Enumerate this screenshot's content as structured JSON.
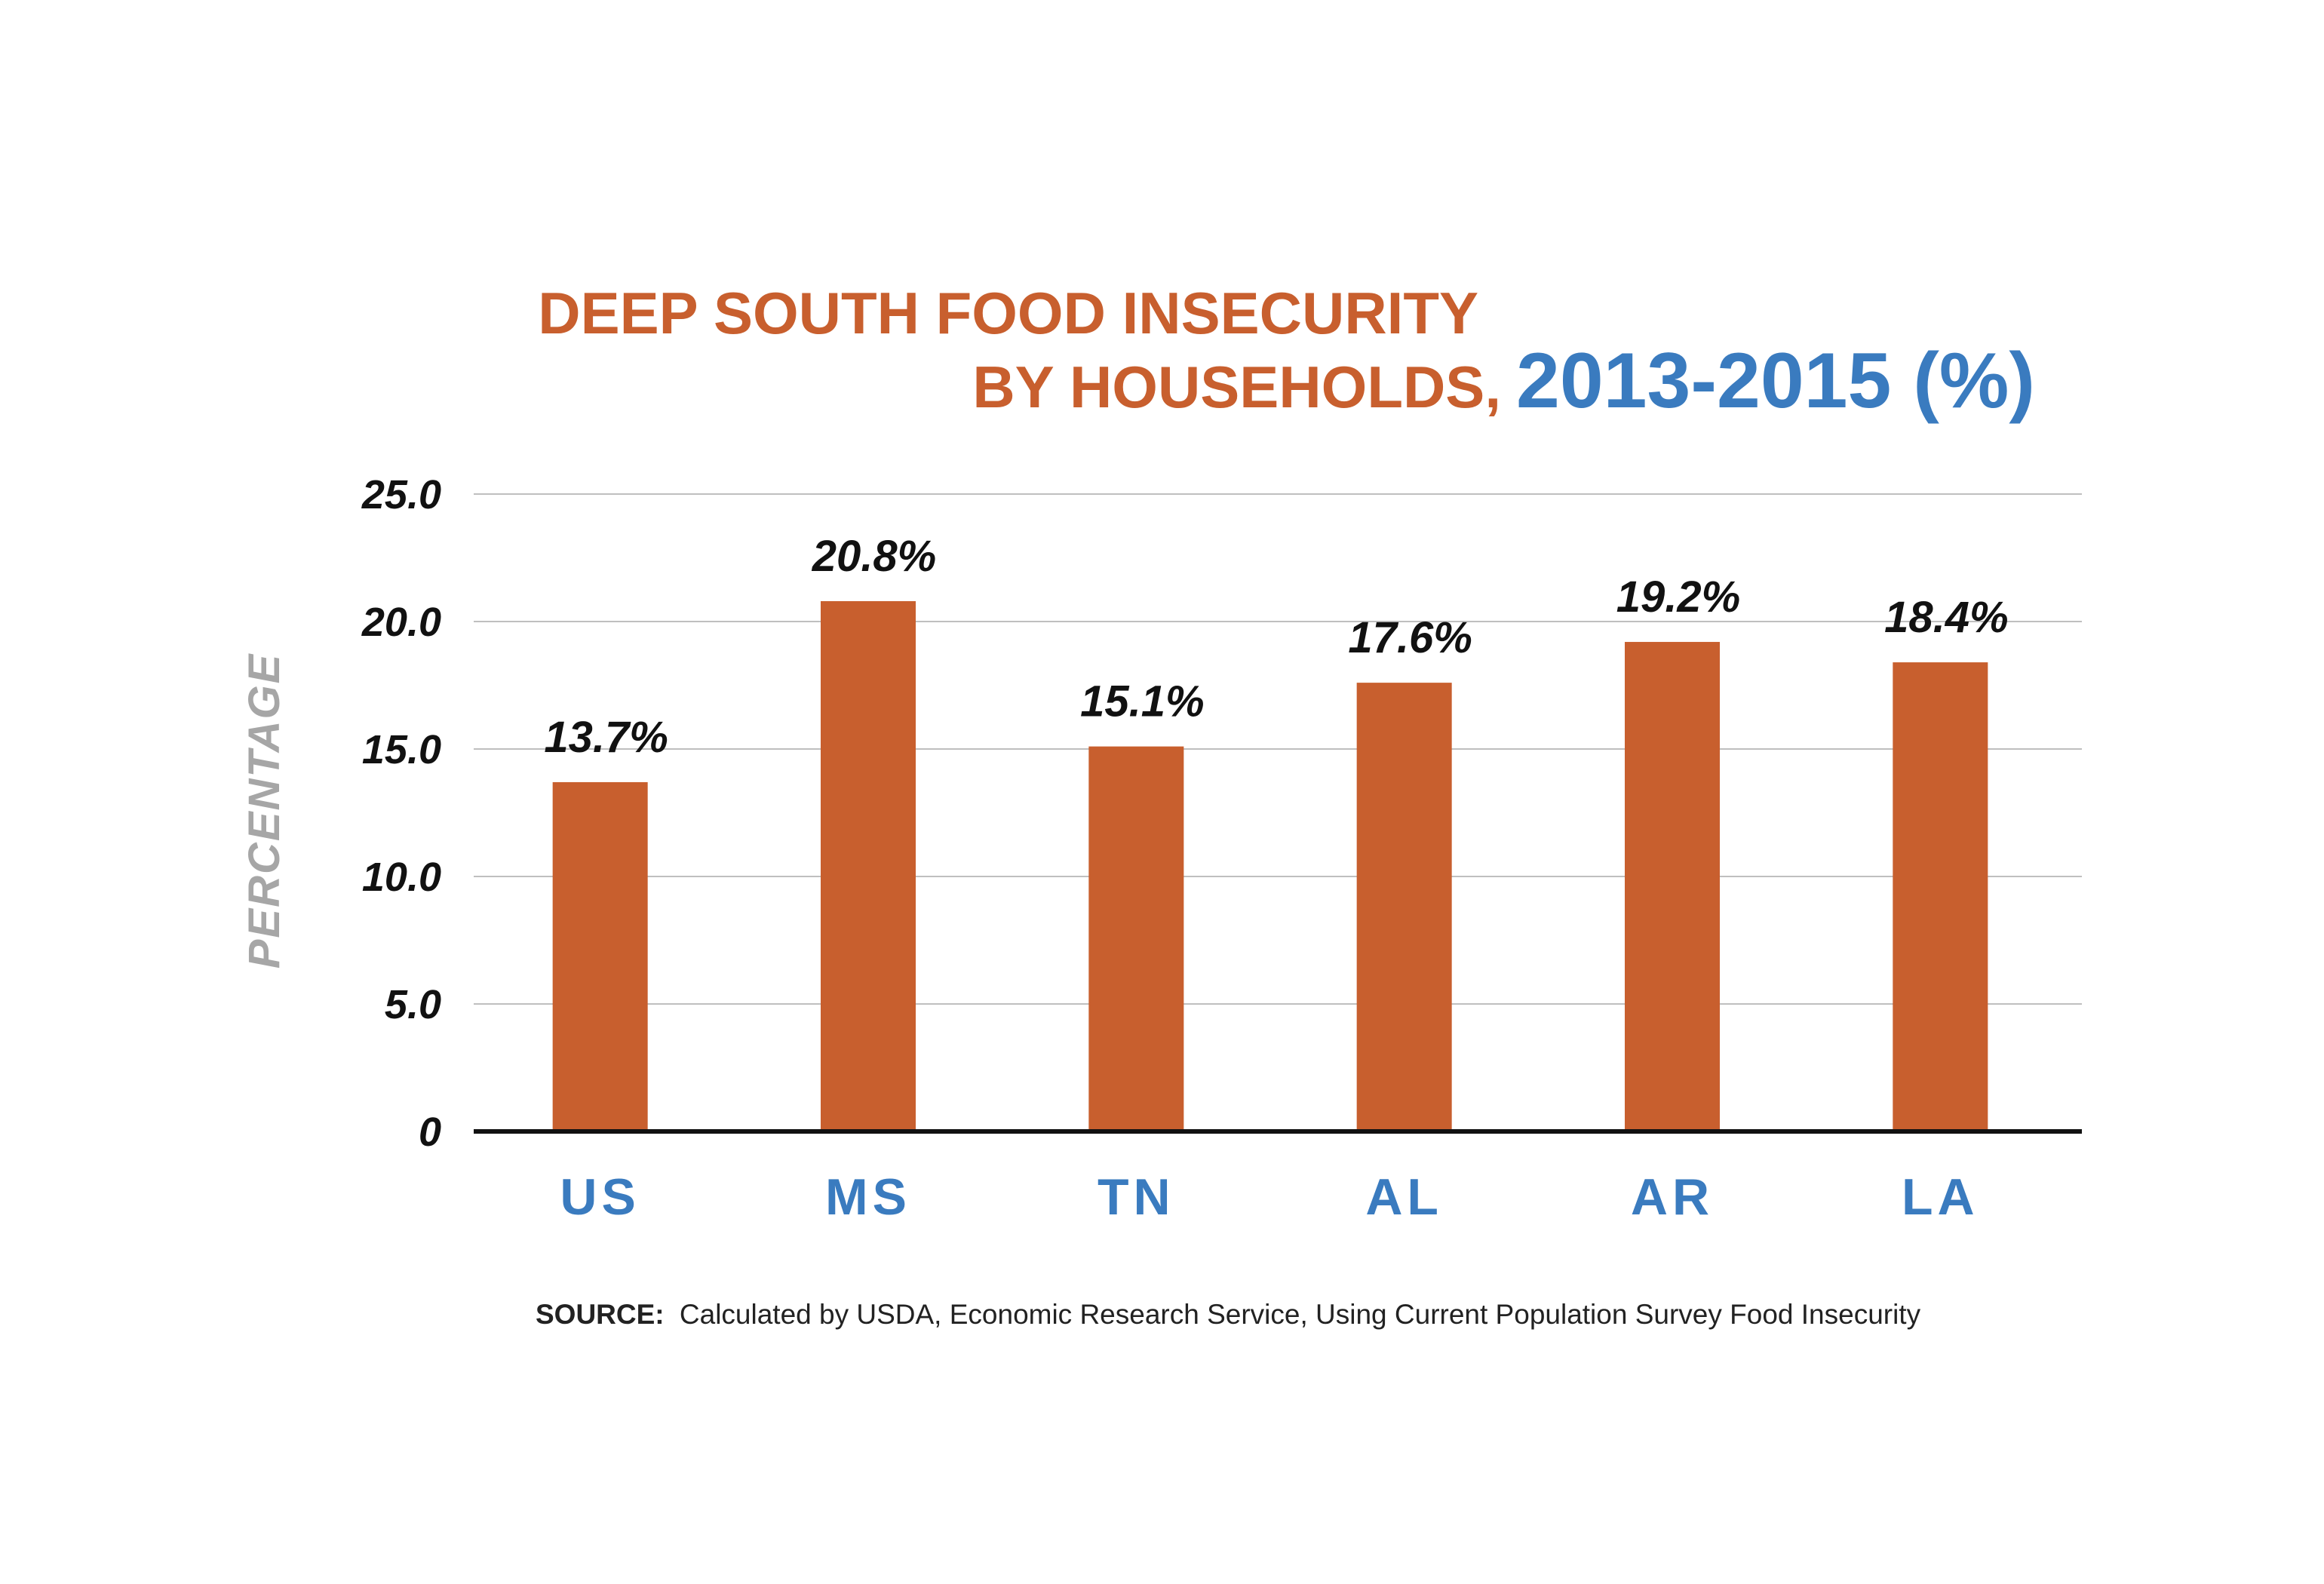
{
  "colors": {
    "bar": "#c85f2e",
    "title_primary": "#c85f2e",
    "title_accent": "#3a7bbf",
    "category_label": "#3a7bbf",
    "ylabel": "#a6a6a6",
    "gridline": "#bfbfbf",
    "axis": "#111111"
  },
  "chart_data": {
    "type": "bar",
    "title_line1": "DEEP SOUTH FOOD INSECURITY",
    "title_line2_main": "BY HOUSEHOLDS,",
    "title_line2_accent": "2013-2015 (%)",
    "ylabel": "PERCENTAGE",
    "xlabel": "",
    "categories": [
      "US",
      "MS",
      "TN",
      "AL",
      "AR",
      "LA"
    ],
    "values": [
      13.7,
      20.8,
      15.1,
      17.6,
      19.2,
      18.4
    ],
    "value_labels": [
      "13.7%",
      "20.8%",
      "15.1%",
      "17.6%",
      "19.2%",
      "18.4%"
    ],
    "ylim": [
      0,
      25
    ],
    "yticks": [
      0,
      5,
      10,
      15,
      20,
      25
    ],
    "ytick_labels": [
      "0",
      "5.0",
      "10.0",
      "15.0",
      "20.0",
      "25.0"
    ],
    "grid": true,
    "legend": "none"
  },
  "source": {
    "label": "SOURCE:",
    "text": "Calculated by USDA, Economic Research Service, Using Current Population Survey Food Insecurity"
  }
}
